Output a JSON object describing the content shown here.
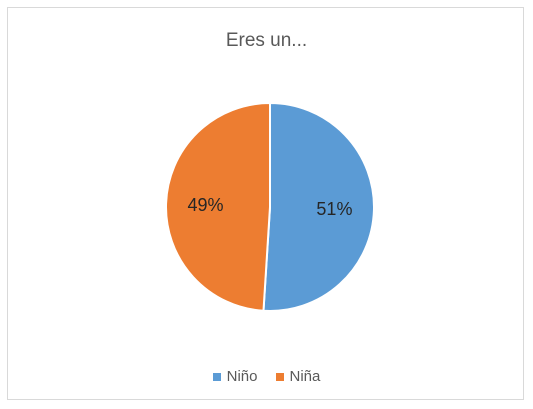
{
  "chart_data": {
    "type": "pie",
    "title": "Eres un...",
    "categories": [
      "Niño",
      "Niña"
    ],
    "values": [
      51,
      49
    ],
    "labels": [
      "51%",
      "49%"
    ],
    "colors": [
      "#5b9bd5",
      "#ed7d31"
    ],
    "legend": "bottom"
  }
}
